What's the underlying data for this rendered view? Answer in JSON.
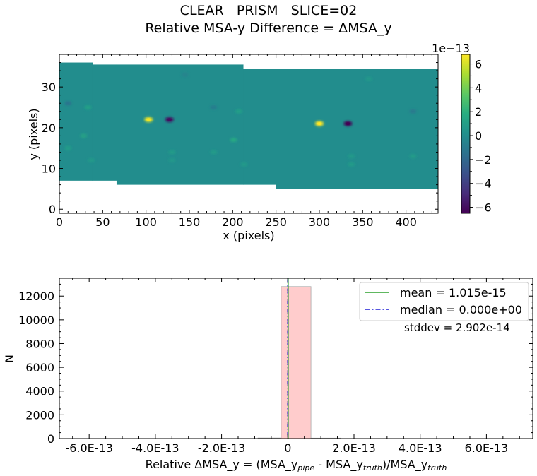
{
  "figure": {
    "title_line1": "CLEAR   PRISM   SLICE=02",
    "title_line2": "Relative MSA-y Difference = ΔMSA_y"
  },
  "chart_data": [
    {
      "type": "heatmap",
      "xlabel": "x (pixels)",
      "ylabel": "y (pixels)",
      "xlim": [
        0,
        437
      ],
      "ylim": [
        -1,
        38
      ],
      "xticks": [
        0,
        50,
        100,
        150,
        200,
        250,
        300,
        350,
        400
      ],
      "yticks": [
        0,
        10,
        20,
        30
      ],
      "colormap": "viridis",
      "colorbar": {
        "offset_text": "1e−13",
        "range": [
          -6.5,
          6.8
        ],
        "ticks": [
          6,
          4,
          2,
          0,
          -2,
          -4,
          -6
        ],
        "tick_labels": [
          "6",
          "4",
          "2",
          "0",
          "−2",
          "−4",
          "−6"
        ]
      },
      "background_value": 0.0,
      "regions": [
        {
          "x": [
            0,
            38
          ],
          "y": [
            7,
            36
          ]
        },
        {
          "x": [
            38,
            66
          ],
          "y": [
            7,
            35.5
          ]
        },
        {
          "x": [
            66,
            212
          ],
          "y": [
            6,
            35.5
          ]
        },
        {
          "x": [
            212,
            250
          ],
          "y": [
            6,
            34.5
          ]
        },
        {
          "x": [
            250,
            437
          ],
          "y": [
            5,
            34.5
          ]
        }
      ],
      "spots": [
        {
          "x": 103,
          "y": 22,
          "v": 6.5
        },
        {
          "x": 127,
          "y": 22,
          "v": -6.0
        },
        {
          "x": 300,
          "y": 21,
          "v": 6.8
        },
        {
          "x": 333,
          "y": 21,
          "v": -6.5
        },
        {
          "x": 10,
          "y": 26,
          "v": -1.4
        },
        {
          "x": 33,
          "y": 25,
          "v": 1.1
        },
        {
          "x": 28,
          "y": 18,
          "v": 1.2
        },
        {
          "x": 10,
          "y": 15,
          "v": 0.9
        },
        {
          "x": 37,
          "y": 12,
          "v": 0.7
        },
        {
          "x": 178,
          "y": 25,
          "v": -0.9
        },
        {
          "x": 207,
          "y": 24,
          "v": 1.0
        },
        {
          "x": 201,
          "y": 17,
          "v": 1.6
        },
        {
          "x": 178,
          "y": 14,
          "v": 0.8
        },
        {
          "x": 130,
          "y": 14,
          "v": 0.8
        },
        {
          "x": 130,
          "y": 12,
          "v": 0.6
        },
        {
          "x": 213,
          "y": 11,
          "v": 0.7
        },
        {
          "x": 408,
          "y": 24,
          "v": -1.1
        },
        {
          "x": 408,
          "y": 13,
          "v": 0.8
        },
        {
          "x": 337,
          "y": 13,
          "v": 0.7
        },
        {
          "x": 337,
          "y": 11,
          "v": 0.8
        },
        {
          "x": 357,
          "y": 32,
          "v": 0.6
        },
        {
          "x": 145,
          "y": 33,
          "v": -0.5
        }
      ]
    },
    {
      "type": "bar",
      "subtype": "histogram",
      "xlabel_parts": [
        {
          "t": "Relative ΔMSA_y = (MSA_y",
          "s": false
        },
        {
          "t": "pipe",
          "s": true
        },
        {
          "t": " - MSA_y",
          "s": false
        },
        {
          "t": "truth",
          "s": true
        },
        {
          "t": ")/MSA_y",
          "s": false
        },
        {
          "t": "truth",
          "s": true
        }
      ],
      "ylabel": "N",
      "xlim": [
        -6.9,
        7.4
      ],
      "ylim": [
        0,
        13500
      ],
      "xticks": [
        -6,
        -4,
        -2,
        0,
        2,
        4,
        6
      ],
      "xtick_labels": [
        "-6.0E-13",
        "-4.0E-13",
        "-2.0E-13",
        "0",
        "2.0E-13",
        "4.0E-13",
        "6.0E-13"
      ],
      "yticks": [
        0,
        2000,
        4000,
        6000,
        8000,
        10000,
        12000
      ],
      "ytick_labels": [
        "0",
        "2000",
        "4000",
        "6000",
        "8000",
        "10000",
        "12000"
      ],
      "bins": [
        {
          "x0": -0.9,
          "x1": -0.2,
          "count": 50
        },
        {
          "x0": -0.2,
          "x1": 0.7,
          "count": 12800
        },
        {
          "x0": 0.7,
          "x1": 1.6,
          "count": 40
        }
      ],
      "series": [
        {
          "name": "mean = 1.015e-15",
          "value": 0.01015,
          "style": "solid",
          "color": "#2ca02c"
        },
        {
          "name": "median = 0.000e+00",
          "value": 0.0,
          "style": "dashdot",
          "color": "#1f1fd6"
        }
      ],
      "annotation": "stddev = 2.902e-14",
      "legend_position": "top-right",
      "bar_color": "#ffcccc",
      "bar_edge": "#aaaaaa"
    }
  ]
}
